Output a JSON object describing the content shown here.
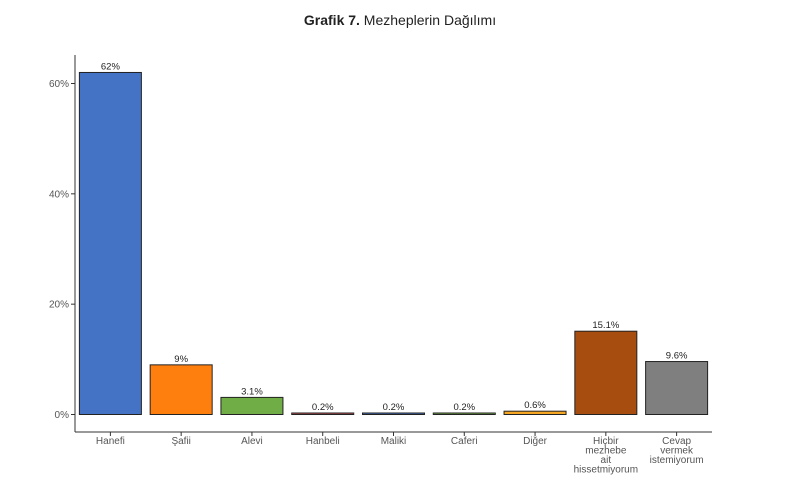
{
  "chart_data": {
    "type": "bar",
    "title_bold": "Grafik 7.",
    "title_rest": " Mezheplerin Dağılımı",
    "xlabel": "",
    "ylabel": "",
    "ylim": [
      0,
      66
    ],
    "yticks": [
      0,
      20,
      40,
      60
    ],
    "ytick_labels": [
      "0%",
      "20%",
      "40%",
      "60%"
    ],
    "grid": false,
    "categories": [
      [
        "Hanefi"
      ],
      [
        "Şafii"
      ],
      [
        "Alevi"
      ],
      [
        "Hanbeli"
      ],
      [
        "Maliki"
      ],
      [
        "Caferi"
      ],
      [
        "Diğer"
      ],
      [
        "Hiçbir",
        "mezhebe",
        "ait",
        "hissetmiyorum"
      ],
      [
        "Cevap",
        "vermek",
        "istemiyorum"
      ]
    ],
    "values": [
      62,
      9,
      3.1,
      0.2,
      0.2,
      0.2,
      0.6,
      15.1,
      9.6
    ],
    "value_labels": [
      "62%",
      "9%",
      "3.1%",
      "0.2%",
      "0.2%",
      "0.2%",
      "0.6%",
      "15.1%",
      "9.6%"
    ],
    "colors": [
      "#4472C4",
      "#FF7F0E",
      "#70AD47",
      "#C0504D",
      "#4472C4",
      "#70AD47",
      "#F5A623",
      "#A64D0F",
      "#7F7F7F"
    ]
  }
}
